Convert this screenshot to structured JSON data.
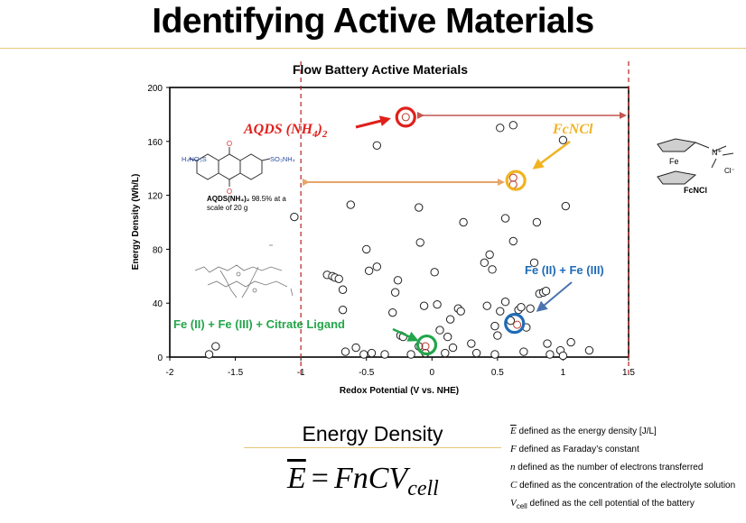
{
  "slide": {
    "title": "Identifying Active Materials"
  },
  "chart_data": {
    "type": "scatter",
    "title": "Flow Battery Active Materials",
    "xlabel": "Redox Potential (V vs. NHE)",
    "ylabel": "Energy Density (Wh/L)",
    "xlim": [
      -2,
      1.5
    ],
    "ylim": [
      0,
      200
    ],
    "x_ticks": [
      "-2",
      "-1.5",
      "-1",
      "-0.5",
      "0",
      "0.5",
      "1",
      "1.5"
    ],
    "y_ticks": [
      "0",
      "40",
      "80",
      "120",
      "160",
      "200"
    ],
    "grid": false,
    "vertical_guides_x": [
      -1,
      1.5
    ],
    "points": [
      {
        "x": -1.7,
        "y": 2
      },
      {
        "x": -1.65,
        "y": 8
      },
      {
        "x": -1.05,
        "y": 104
      },
      {
        "x": -0.8,
        "y": 61
      },
      {
        "x": -0.76,
        "y": 60
      },
      {
        "x": -0.74,
        "y": 59
      },
      {
        "x": -0.71,
        "y": 58
      },
      {
        "x": -0.68,
        "y": 50
      },
      {
        "x": -0.68,
        "y": 35
      },
      {
        "x": -0.66,
        "y": 4
      },
      {
        "x": -0.62,
        "y": 113
      },
      {
        "x": -0.58,
        "y": 7
      },
      {
        "x": -0.52,
        "y": 2
      },
      {
        "x": -0.5,
        "y": 80
      },
      {
        "x": -0.48,
        "y": 64
      },
      {
        "x": -0.46,
        "y": 3
      },
      {
        "x": -0.42,
        "y": 157
      },
      {
        "x": -0.42,
        "y": 67
      },
      {
        "x": -0.36,
        "y": 2
      },
      {
        "x": -0.3,
        "y": 33
      },
      {
        "x": -0.28,
        "y": 48
      },
      {
        "x": -0.26,
        "y": 57
      },
      {
        "x": -0.24,
        "y": 16
      },
      {
        "x": -0.22,
        "y": 15
      },
      {
        "x": -0.16,
        "y": 2
      },
      {
        "x": -0.1,
        "y": 8
      },
      {
        "x": -0.1,
        "y": 111
      },
      {
        "x": -0.09,
        "y": 85
      },
      {
        "x": -0.06,
        "y": 38
      },
      {
        "x": -0.05,
        "y": 3
      },
      {
        "x": 0.02,
        "y": 63
      },
      {
        "x": 0.04,
        "y": 39
      },
      {
        "x": 0.06,
        "y": 20
      },
      {
        "x": 0.1,
        "y": 3
      },
      {
        "x": 0.12,
        "y": 15
      },
      {
        "x": 0.14,
        "y": 28
      },
      {
        "x": 0.16,
        "y": 7
      },
      {
        "x": 0.2,
        "y": 36
      },
      {
        "x": 0.22,
        "y": 34
      },
      {
        "x": 0.24,
        "y": 100
      },
      {
        "x": 0.3,
        "y": 10
      },
      {
        "x": 0.34,
        "y": 3
      },
      {
        "x": 0.4,
        "y": 70
      },
      {
        "x": 0.42,
        "y": 38
      },
      {
        "x": 0.44,
        "y": 76
      },
      {
        "x": 0.46,
        "y": 65
      },
      {
        "x": 0.48,
        "y": 2
      },
      {
        "x": 0.48,
        "y": 23
      },
      {
        "x": 0.5,
        "y": 16
      },
      {
        "x": 0.52,
        "y": 34
      },
      {
        "x": 0.52,
        "y": 170
      },
      {
        "x": 0.56,
        "y": 103
      },
      {
        "x": 0.56,
        "y": 41
      },
      {
        "x": 0.6,
        "y": 27
      },
      {
        "x": 0.62,
        "y": 172
      },
      {
        "x": 0.62,
        "y": 86
      },
      {
        "x": 0.66,
        "y": 35
      },
      {
        "x": 0.68,
        "y": 37
      },
      {
        "x": 0.7,
        "y": 4
      },
      {
        "x": 0.72,
        "y": 22
      },
      {
        "x": 0.75,
        "y": 36
      },
      {
        "x": 0.78,
        "y": 70
      },
      {
        "x": 0.8,
        "y": 100
      },
      {
        "x": 0.82,
        "y": 47
      },
      {
        "x": 0.85,
        "y": 48
      },
      {
        "x": 0.87,
        "y": 49
      },
      {
        "x": 0.88,
        "y": 10
      },
      {
        "x": 0.9,
        "y": 2
      },
      {
        "x": 0.98,
        "y": 5
      },
      {
        "x": 1.0,
        "y": 1
      },
      {
        "x": 1.0,
        "y": 161
      },
      {
        "x": 1.02,
        "y": 112
      },
      {
        "x": 1.06,
        "y": 11
      },
      {
        "x": 1.2,
        "y": 5
      }
    ],
    "highlighted_points": [
      {
        "x": -0.2,
        "y": 178
      },
      {
        "x": 0.62,
        "y": 133
      },
      {
        "x": 0.62,
        "y": 128
      },
      {
        "x": 0.65,
        "y": 24
      },
      {
        "x": -0.05,
        "y": 8
      }
    ],
    "annotations": [
      {
        "label": "AQDS (NH4)2",
        "color": "#e0201b",
        "x": -0.2,
        "y": 178
      },
      {
        "label": "FcNCl",
        "color": "#f0b322",
        "x": 0.64,
        "y": 131
      },
      {
        "label": "Fe (II) + Fe (III)",
        "color": "#1f6bb5",
        "x": 0.63,
        "y": 25
      },
      {
        "label": "Fe (II) + Fe (III) + Citrate Ligand",
        "color": "#23a54a",
        "x": -0.04,
        "y": 9
      }
    ],
    "colors": {
      "aqds": "#e0201b",
      "fcncl": "#f0b322",
      "iron": "#1f6bb5",
      "citrate": "#23a54a",
      "red_arrow": "#c4554f",
      "orange_arrow": "#e7a56a",
      "guide": "#b22222"
    }
  },
  "structures": {
    "aqds": {
      "left_group": "H₄NO₃S",
      "right_group": "SO₃NH₄",
      "oxygen": "O",
      "caption_bold": "AQDS(NH₄)₂",
      "caption_rest": " 98.5% at a",
      "caption_line2": "scale of 20 g"
    },
    "fcncl": {
      "iron": "Fe",
      "nitrogen": "N⁺",
      "chloride": "Cl⁻",
      "name": "FcNCl"
    }
  },
  "equation": {
    "heading": "Energy Density",
    "lhs": "E",
    "equals": "=",
    "rhs": "FnCV",
    "rhs_sub": "cell"
  },
  "definitions": [
    {
      "symbol": "E",
      "symbol_bar": true,
      "text": " defined as the energy density [J/L]"
    },
    {
      "symbol": "F",
      "text": " defined as Faraday’s constant"
    },
    {
      "symbol": "n",
      "text": "  defined as the number of electrons transferred"
    },
    {
      "symbol": "C",
      "text": " defined as the concentration of the electrolyte solution"
    },
    {
      "symbol": "V",
      "symbol_sub": "cell",
      "text": " defined as the cell potential of the battery"
    }
  ]
}
